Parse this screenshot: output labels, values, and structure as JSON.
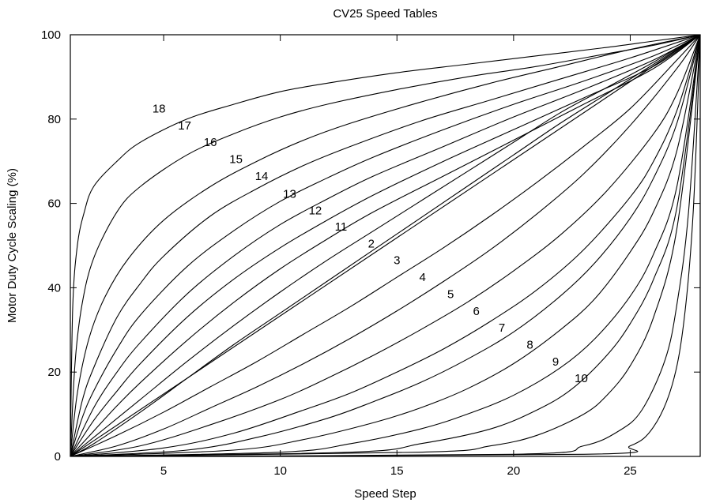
{
  "chart_data": {
    "type": "line",
    "title": "CV25 Speed Tables",
    "xlabel": "Speed Step",
    "ylabel": "Motor Duty Cycle Scaling (%)",
    "xlim": [
      1,
      28
    ],
    "ylim": [
      0,
      100
    ],
    "xticks": [
      5,
      10,
      15,
      20,
      25
    ],
    "yticks": [
      0,
      20,
      40,
      60,
      80,
      100
    ],
    "grid": false,
    "legend": "none",
    "curve_color": "#000000",
    "series": [
      {
        "name": "18",
        "label_at": {
          "x": 4.8,
          "y": 82.5
        }
      },
      {
        "name": "17",
        "label_at": {
          "x": 5.9,
          "y": 78.5
        }
      },
      {
        "name": "16",
        "label_at": {
          "x": 7.0,
          "y": 74.5
        }
      },
      {
        "name": "15",
        "label_at": {
          "x": 8.1,
          "y": 70.5
        }
      },
      {
        "name": "14",
        "label_at": {
          "x": 9.2,
          "y": 66.5
        }
      },
      {
        "name": "13",
        "label_at": {
          "x": 10.4,
          "y": 62.3
        }
      },
      {
        "name": "12",
        "label_at": {
          "x": 11.5,
          "y": 58.3
        }
      },
      {
        "name": "11",
        "label_at": {
          "x": 12.6,
          "y": 54.5
        }
      },
      {
        "name": "2",
        "label_at": {
          "x": 13.9,
          "y": 50.5
        }
      },
      {
        "name": "3",
        "label_at": {
          "x": 15.0,
          "y": 46.5
        }
      },
      {
        "name": "4",
        "label_at": {
          "x": 16.1,
          "y": 42.5
        }
      },
      {
        "name": "5",
        "label_at": {
          "x": 17.3,
          "y": 38.5
        }
      },
      {
        "name": "6",
        "label_at": {
          "x": 18.4,
          "y": 34.5
        }
      },
      {
        "name": "7",
        "label_at": {
          "x": 19.5,
          "y": 30.5
        }
      },
      {
        "name": "8",
        "label_at": {
          "x": 20.7,
          "y": 26.5
        }
      },
      {
        "name": "9",
        "label_at": {
          "x": 21.8,
          "y": 22.5
        }
      },
      {
        "name": "10",
        "label_at": {
          "x": 22.9,
          "y": 18.5
        }
      }
    ],
    "curves": [
      {
        "x": [
          1,
          1.1,
          1.3,
          1.6,
          2,
          3,
          4,
          6,
          8,
          10,
          12,
          15,
          18,
          21,
          24,
          26,
          28
        ],
        "y": [
          0,
          35,
          50,
          58,
          64,
          70,
          74.5,
          80,
          83.5,
          86.5,
          88.5,
          91,
          93,
          95,
          97,
          98.5,
          100
        ]
      },
      {
        "x": [
          1,
          1.2,
          1.5,
          2,
          3,
          4,
          6,
          8,
          10,
          12,
          15,
          18,
          21,
          24,
          26,
          28
        ],
        "y": [
          0,
          22,
          36,
          47,
          58,
          64,
          71.5,
          76.5,
          80.5,
          83.5,
          87,
          90,
          92.5,
          95.5,
          97.5,
          100
        ]
      },
      {
        "x": [
          1,
          1.3,
          1.8,
          2.5,
          3.5,
          5,
          7,
          9,
          11,
          13,
          16,
          19,
          22,
          25,
          28
        ],
        "y": [
          0,
          15,
          28,
          38,
          47,
          56,
          64,
          70,
          75,
          79,
          84,
          88.5,
          92.5,
          96.5,
          100
        ]
      },
      {
        "x": [
          1,
          1.5,
          2,
          3,
          4,
          5,
          7,
          9,
          11,
          13,
          16,
          19,
          22,
          25,
          28
        ],
        "y": [
          0,
          13,
          21,
          33,
          41,
          47.5,
          57,
          63.5,
          69,
          73.5,
          79.5,
          84.5,
          89.5,
          94.5,
          100
        ]
      },
      {
        "x": [
          1,
          1.5,
          2,
          3,
          4,
          6,
          8,
          10,
          12,
          14,
          17,
          20,
          23,
          26,
          28
        ],
        "y": [
          0,
          9,
          15.5,
          25.5,
          33.5,
          45,
          53.5,
          60.5,
          66,
          71,
          77.5,
          83.5,
          89,
          95,
          100
        ]
      },
      {
        "x": [
          1,
          2,
          3,
          4,
          6,
          8,
          10,
          12,
          14,
          17,
          20,
          23,
          26,
          28
        ],
        "y": [
          0,
          11.5,
          20,
          27,
          38.5,
          47.5,
          55,
          61,
          66.5,
          73.5,
          80.5,
          87,
          94,
          100
        ]
      },
      {
        "x": [
          1,
          2,
          3,
          4,
          6,
          8,
          10,
          12,
          14,
          17,
          20,
          23,
          26,
          28
        ],
        "y": [
          0,
          8.5,
          15.5,
          22,
          33,
          42,
          49.5,
          56,
          62,
          70,
          77.5,
          85,
          92.5,
          100
        ]
      },
      {
        "x": [
          1,
          2,
          3,
          4,
          6,
          8,
          10,
          12,
          14,
          17,
          20,
          23,
          26,
          28
        ],
        "y": [
          0,
          6,
          12,
          17.5,
          27.5,
          36.5,
          44.5,
          51.5,
          58,
          66.5,
          75,
          83.5,
          92,
          100
        ]
      },
      {
        "x": [
          1,
          2,
          4,
          6,
          8,
          10,
          12,
          14,
          16,
          18,
          20,
          22,
          24,
          26,
          28
        ],
        "y": [
          0,
          4.5,
          13.5,
          22.5,
          31,
          39,
          46.5,
          53.5,
          60.5,
          67.5,
          74.5,
          81.5,
          87.5,
          93.5,
          100
        ]
      },
      {
        "x": [
          1,
          2,
          4,
          6,
          8,
          10,
          12,
          14,
          16,
          18,
          20,
          22,
          24,
          26,
          28
        ],
        "y": [
          0,
          3,
          10.5,
          18.5,
          26.5,
          34,
          41.5,
          49,
          56.5,
          64,
          71.5,
          79,
          86,
          93,
          100
        ]
      },
      {
        "x": [
          1,
          28
        ],
        "y": [
          0,
          100
        ]
      },
      {
        "x": [
          1,
          3,
          5,
          7,
          9,
          11,
          13,
          15,
          17,
          19,
          21,
          23,
          25,
          27,
          28
        ],
        "y": [
          0,
          5,
          10.5,
          16.5,
          22.5,
          29,
          35.5,
          42.5,
          49.5,
          57,
          65,
          73.5,
          82.5,
          94,
          100
        ]
      },
      {
        "x": [
          1,
          3,
          5,
          7,
          9,
          11,
          13,
          15,
          17,
          19,
          21,
          23,
          25,
          27,
          28
        ],
        "y": [
          0,
          2.5,
          6.5,
          11.5,
          16.5,
          22,
          28,
          34.5,
          41.5,
          49,
          57.5,
          67,
          78.5,
          92,
          100
        ]
      },
      {
        "x": [
          1,
          4,
          7,
          10,
          12,
          14,
          16,
          18,
          20,
          22,
          24,
          26,
          27,
          28
        ],
        "y": [
          0,
          2.5,
          7.5,
          13.5,
          18.5,
          24,
          30,
          36.5,
          44,
          52.5,
          63,
          76.5,
          86,
          100
        ]
      },
      {
        "x": [
          1,
          5,
          8,
          11,
          13,
          15,
          17,
          19,
          21,
          23,
          25,
          26,
          27,
          28
        ],
        "y": [
          0,
          2,
          5.5,
          11,
          15,
          20,
          25.5,
          32,
          39.5,
          49,
          61.5,
          70,
          82,
          100
        ]
      },
      {
        "x": [
          1,
          6,
          9,
          12,
          14,
          16,
          18,
          20,
          22,
          23.5,
          25,
          26,
          27,
          28
        ],
        "y": [
          0,
          1.5,
          4.5,
          9,
          13,
          17.5,
          23,
          29.5,
          38,
          46,
          56.5,
          66,
          79,
          100
        ]
      },
      {
        "x": [
          1,
          8,
          11,
          14,
          16,
          18,
          20,
          22,
          23.5,
          25,
          26,
          27,
          28
        ],
        "y": [
          0,
          1.5,
          4,
          8,
          11.5,
          16,
          22,
          30,
          37.5,
          48.5,
          58,
          72.5,
          100
        ]
      },
      {
        "x": [
          1,
          10,
          13,
          16,
          18,
          20,
          22,
          23.5,
          25,
          26,
          27,
          28
        ],
        "y": [
          0,
          1,
          3,
          6.5,
          10,
          14.5,
          21,
          28,
          38,
          48,
          64,
          100
        ]
      },
      {
        "x": [
          1,
          13,
          16,
          19,
          21,
          22.5,
          24,
          25,
          26,
          27,
          28
        ],
        "y": [
          0,
          1,
          3,
          6.5,
          11,
          16,
          24,
          31.5,
          42,
          59,
          100
        ]
      },
      {
        "x": [
          1,
          16,
          19,
          21,
          23,
          24,
          25,
          26,
          27,
          28
        ],
        "y": [
          0,
          1,
          2.5,
          5,
          10,
          14.5,
          21.5,
          33,
          54,
          100
        ]
      },
      {
        "x": [
          1,
          20,
          23,
          24.5,
          25.5,
          26.5,
          27,
          27.5,
          28
        ],
        "y": [
          0,
          0.5,
          2.5,
          6,
          11,
          23,
          36,
          58,
          100
        ]
      },
      {
        "x": [
          1,
          23,
          25,
          26,
          26.8,
          27.3,
          27.7,
          28
        ],
        "y": [
          0,
          0.5,
          2.5,
          7,
          17,
          32,
          58,
          100
        ]
      }
    ]
  }
}
